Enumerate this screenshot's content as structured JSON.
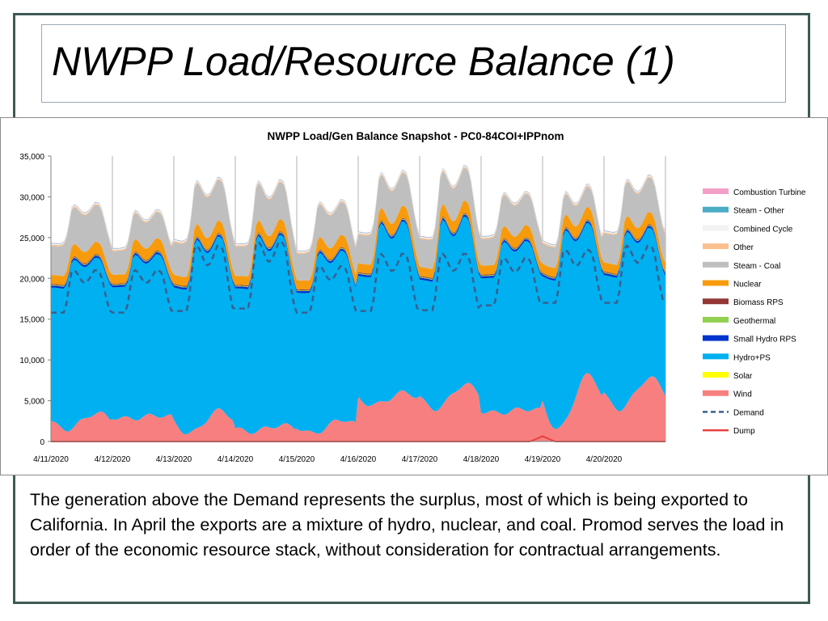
{
  "slide": {
    "title": "NWPP Load/Resource Balance (1)",
    "caption": "The generation above the Demand represents the surplus, most of which is being exported to California.  In April the exports are a mixture of hydro, nuclear, and coal.  Promod serves the load in order of the economic resource stack, without consideration for contractual arrangements."
  },
  "chart_data": {
    "type": "area",
    "title": "NWPP Load/Gen Balance Snapshot - PC0-84COI+IPPnom",
    "xlabel": "",
    "ylabel": "",
    "ylim": [
      0,
      35000
    ],
    "yticks": [
      "0",
      "5,000",
      "10,000",
      "15,000",
      "20,000",
      "25,000",
      "30,000",
      "35,000"
    ],
    "x_tick_labels": [
      "4/11/2020",
      "4/12/2020",
      "4/13/2020",
      "4/14/2020",
      "4/15/2020",
      "4/16/2020",
      "4/17/2020",
      "4/18/2020",
      "4/19/2020",
      "4/20/2020"
    ],
    "grid": "vertical",
    "legend_position": "right",
    "stacked": true,
    "hourly_profile": {
      "hydro_shape": [
        0,
        0,
        0,
        0,
        0,
        0,
        0.15,
        0.5,
        0.9,
        1,
        0.95,
        0.85,
        0.75,
        0.7,
        0.72,
        0.8,
        0.9,
        1,
        1,
        0.95,
        0.8,
        0.55,
        0.3,
        0.1
      ],
      "coal_shape": [
        0.55,
        0.55,
        0.55,
        0.55,
        0.6,
        0.7,
        0.8,
        0.9,
        1,
        1,
        1,
        1,
        1,
        1,
        1,
        1,
        1,
        1,
        1,
        1,
        0.95,
        0.85,
        0.7,
        0.6
      ],
      "demand_shape": [
        0,
        0,
        0,
        0,
        0,
        0,
        0.2,
        0.6,
        0.95,
        1,
        0.95,
        0.85,
        0.75,
        0.7,
        0.72,
        0.8,
        0.9,
        1,
        1,
        0.95,
        0.8,
        0.5,
        0.25,
        0.05
      ]
    },
    "daily": {
      "wind_peak": [
        3500,
        3200,
        3800,
        2000,
        2700,
        6000,
        7000,
        4000,
        8200,
        7800
      ],
      "wind_offpeak": [
        1500,
        2800,
        1000,
        1200,
        1000,
        4500,
        4000,
        3500,
        1500,
        4000
      ],
      "hydro_min": [
        16500,
        16500,
        16500,
        16500,
        16000,
        17500,
        17000,
        17500,
        17500,
        17500
      ],
      "hydro_max": [
        20000,
        20500,
        22500,
        23000,
        21000,
        24000,
        24500,
        22000,
        23500,
        23000
      ],
      "small_hydro": 250,
      "geothermal": 100,
      "biomass": 100,
      "nuclear_low": 1100,
      "nuclear_high": 1500,
      "other": 150,
      "coal_min": [
        2400,
        2500,
        2800,
        2500,
        2400,
        2900,
        2800,
        2600,
        2500,
        2800
      ],
      "coal_max": [
        4500,
        3200,
        5000,
        4500,
        4000,
        4000,
        4000,
        3800,
        2500,
        4200
      ],
      "combined_cycle": 150,
      "steam_other": 50,
      "combustion_turbine": 30,
      "demand_min": [
        15800,
        15800,
        16000,
        16300,
        15800,
        16000,
        16100,
        16700,
        17000,
        17000
      ],
      "demand_max": [
        21000,
        21000,
        24000,
        24500,
        21500,
        23000,
        23000,
        22500,
        23500,
        24000
      ]
    },
    "dump_spike": {
      "x": 8.0,
      "value": 650
    },
    "series": [
      {
        "name": "Combustion Turbine",
        "color": "#f2a0c8",
        "style": "area",
        "key": "combustion_turbine"
      },
      {
        "name": "Steam - Other",
        "color": "#4bacc6",
        "style": "area",
        "key": "steam_other"
      },
      {
        "name": "Combined Cycle",
        "color": "#f2f2f2",
        "style": "area",
        "key": "combined_cycle"
      },
      {
        "name": "Other",
        "color": "#fac090",
        "style": "area",
        "key": "other"
      },
      {
        "name": "Steam - Coal",
        "color": "#bfbfbf",
        "style": "area",
        "key": "coal"
      },
      {
        "name": "Nuclear",
        "color": "#f79b0c",
        "style": "area",
        "key": "nuclear"
      },
      {
        "name": "Biomass RPS",
        "color": "#953735",
        "style": "area",
        "key": "biomass"
      },
      {
        "name": "Geothermal",
        "color": "#92d050",
        "style": "area",
        "key": "geothermal"
      },
      {
        "name": "Small Hydro RPS",
        "color": "#0033cc",
        "style": "area",
        "key": "small_hydro"
      },
      {
        "name": "Hydro+PS",
        "color": "#00b0f0",
        "style": "area",
        "key": "hydro"
      },
      {
        "name": "Solar",
        "color": "#ffff00",
        "style": "area",
        "key": "solar"
      },
      {
        "name": "Wind",
        "color": "#f87f7f",
        "style": "area",
        "key": "wind"
      },
      {
        "name": "Demand",
        "color": "#3a5f8f",
        "style": "dashed-line",
        "key": "demand"
      },
      {
        "name": "Dump",
        "color": "#e84040",
        "style": "line",
        "key": "dump"
      }
    ]
  }
}
